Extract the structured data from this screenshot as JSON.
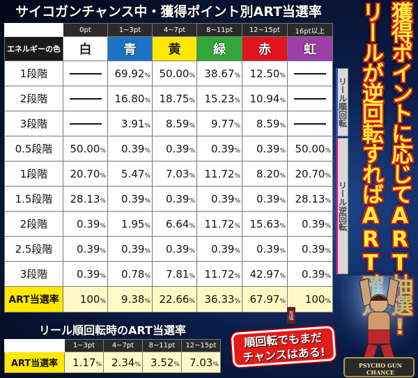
{
  "title": "サイコガンチャンス中・獲得ポイント別ART当選率",
  "points_header": [
    "0pt",
    "1~3pt",
    "4~7pt",
    "8~11pt",
    "12~15pt",
    "16pt以上"
  ],
  "energy_label": "エネルギーの色",
  "colors": [
    {
      "label": "白",
      "hex": "#ffffff"
    },
    {
      "label": "青",
      "hex": "#1c73c4"
    },
    {
      "label": "黄",
      "hex": "#ffe800"
    },
    {
      "label": "緑",
      "hex": "#33a83a"
    },
    {
      "label": "赤",
      "hex": "#e2141c"
    },
    {
      "label": "虹",
      "hex": "#9b3fa6"
    }
  ],
  "rows": [
    {
      "level": "1段階",
      "values": [
        "",
        "69.92",
        "50.00",
        "38.67",
        "12.50",
        ""
      ]
    },
    {
      "level": "2段階",
      "values": [
        "",
        "16.80",
        "18.75",
        "15.23",
        "10.94",
        ""
      ]
    },
    {
      "level": "3段階",
      "values": [
        "",
        "3.91",
        "8.59",
        "9.77",
        "8.59",
        ""
      ]
    },
    {
      "level": "0.5段階",
      "values": [
        "50.00",
        "0.39",
        "0.39",
        "0.39",
        "0.39",
        "50.00"
      ]
    },
    {
      "level": "1段階",
      "values": [
        "20.70",
        "5.47",
        "7.03",
        "11.72",
        "8.20",
        "20.70"
      ]
    },
    {
      "level": "1.5段階",
      "values": [
        "28.13",
        "0.39",
        "0.39",
        "0.39",
        "0.39",
        "28.13"
      ]
    },
    {
      "level": "2段階",
      "values": [
        "0.39",
        "1.95",
        "6.64",
        "11.72",
        "15.63",
        "0.39"
      ]
    },
    {
      "level": "2.5段階",
      "values": [
        "0.39",
        "0.39",
        "0.39",
        "0.39",
        "0.39",
        "0.39"
      ]
    },
    {
      "level": "3段階",
      "values": [
        "0.39",
        "0.78",
        "7.81",
        "11.72",
        "42.97",
        "0.39"
      ]
    }
  ],
  "art_row": {
    "label": "ART当選率",
    "values": [
      "100",
      "9.38",
      "22.66",
      "36.33",
      "67.97",
      "100"
    ]
  },
  "percent_sign": "%",
  "side_labels": {
    "forward": "リール順回転",
    "reverse": "リール逆回転"
  },
  "slogan": {
    "line1": "獲得ポイントに応じてART抽選!",
    "line2": "リールが逆回転すればART確定!"
  },
  "sub": {
    "title": "リール順回転時のART当選率",
    "headers": [
      "1~3pt",
      "4~7pt",
      "8~11pt",
      "12~15pt"
    ],
    "label": "ART当選率",
    "values": [
      "1.17",
      "2.34",
      "3.52",
      "7.03"
    ]
  },
  "bubble": {
    "line1": "順回転でもまだ",
    "line2": "チャンスはある!"
  },
  "chain_label": "充填",
  "logo": {
    "line1": "PSYCHO GUN",
    "line2": "CHANCE"
  }
}
